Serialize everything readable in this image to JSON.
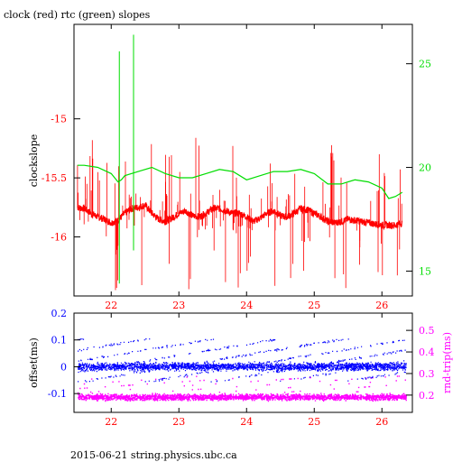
{
  "title": "clock (red) rtc (green) slopes",
  "footer": "2015-06-21 string.physics.ubc.ca",
  "colors": {
    "clock": "#ff0000",
    "rtc": "#00dd00",
    "offset": "#0000ff",
    "rndtrip": "#ff00ff",
    "axis": "#000000"
  },
  "chart_data": [
    {
      "type": "line",
      "panel": "top",
      "ylabel": "clockslope",
      "xlim": [
        21.45,
        26.45
      ],
      "ylim": [
        -16.5,
        -14.2
      ],
      "y2lim": [
        13.8,
        26.9
      ],
      "xticks": [
        22,
        23,
        24,
        25,
        26
      ],
      "yticks": [
        -16,
        -15.5,
        -15
      ],
      "y2ticks": [
        15,
        20,
        25
      ],
      "xticklabels": [
        "22",
        "23",
        "24",
        "25",
        "26"
      ],
      "yticklabels": [
        "-16",
        "-15.5",
        "-15"
      ],
      "y2ticklabels": [
        "15",
        "20",
        "25"
      ],
      "series": [
        {
          "color": "clock",
          "axis": "left",
          "x": [
            21.5,
            21.6,
            21.7,
            21.8,
            21.9,
            22.0,
            22.1,
            22.2,
            22.3,
            22.4,
            22.5,
            22.6,
            22.7,
            22.8,
            22.9,
            23.0,
            23.1,
            23.2,
            23.3,
            23.4,
            23.5,
            23.6,
            23.7,
            23.8,
            23.9,
            24.0,
            24.1,
            24.2,
            24.3,
            24.4,
            24.5,
            24.6,
            24.7,
            24.8,
            24.9,
            25.0,
            25.1,
            25.2,
            25.3,
            25.4,
            25.5,
            25.6,
            25.7,
            25.8,
            25.9,
            26.0,
            26.1,
            26.2,
            26.3
          ],
          "y": [
            -15.75,
            -15.76,
            -15.8,
            -15.83,
            -15.85,
            -15.88,
            -15.86,
            -15.8,
            -15.76,
            -15.75,
            -15.73,
            -15.8,
            -15.85,
            -15.87,
            -15.84,
            -15.8,
            -15.78,
            -15.82,
            -15.83,
            -15.8,
            -15.76,
            -15.76,
            -15.78,
            -15.8,
            -15.8,
            -15.83,
            -15.87,
            -15.84,
            -15.8,
            -15.78,
            -15.82,
            -15.83,
            -15.8,
            -15.76,
            -15.77,
            -15.8,
            -15.83,
            -15.87,
            -15.88,
            -15.87,
            -15.85,
            -15.86,
            -15.87,
            -15.88,
            -15.89,
            -15.9,
            -15.9,
            -15.9,
            -15.88
          ]
        },
        {
          "color": "rtc",
          "axis": "right",
          "x": [
            21.5,
            21.6,
            21.8,
            22.0,
            22.1,
            22.15,
            22.2,
            22.4,
            22.6,
            22.8,
            23.0,
            23.2,
            23.4,
            23.6,
            23.8,
            24.0,
            24.2,
            24.4,
            24.6,
            24.8,
            25.0,
            25.2,
            25.4,
            25.6,
            25.8,
            26.0,
            26.1,
            26.2,
            26.3
          ],
          "y": [
            20.1,
            20.1,
            20.0,
            19.7,
            19.3,
            19.4,
            19.6,
            19.8,
            20.0,
            19.7,
            19.5,
            19.5,
            19.7,
            19.9,
            19.8,
            19.4,
            19.6,
            19.8,
            19.8,
            19.9,
            19.7,
            19.2,
            19.2,
            19.4,
            19.3,
            19.0,
            18.5,
            18.6,
            18.8
          ]
        }
      ]
    },
    {
      "type": "scatter",
      "panel": "bottom",
      "ylabel": "offset(ms)",
      "y2label": "rnd-trip(ms)",
      "xlim": [
        21.45,
        26.45
      ],
      "ylim": [
        -0.17,
        0.2
      ],
      "y2lim": [
        0.12,
        0.58
      ],
      "xticks": [
        22,
        23,
        24,
        25,
        26
      ],
      "yticks": [
        -0.1,
        0,
        0.1,
        0.2
      ],
      "y2ticks": [
        0.2,
        0.3,
        0.4,
        0.5
      ],
      "xticklabels": [
        "22",
        "23",
        "24",
        "25",
        "26"
      ],
      "yticklabels": [
        "-0.1",
        "0",
        "0.1",
        "0.2"
      ],
      "y2ticklabels": [
        "0.2",
        "0.3",
        "0.4",
        "0.5"
      ],
      "series": [
        {
          "color": "offset",
          "axis": "left",
          "x_range": [
            21.5,
            26.35
          ],
          "center": 0.0,
          "spread": 0.02
        },
        {
          "color": "rndtrip",
          "axis": "right",
          "x_range": [
            21.5,
            26.35
          ],
          "center": 0.19,
          "spread": 0.02
        }
      ]
    }
  ]
}
